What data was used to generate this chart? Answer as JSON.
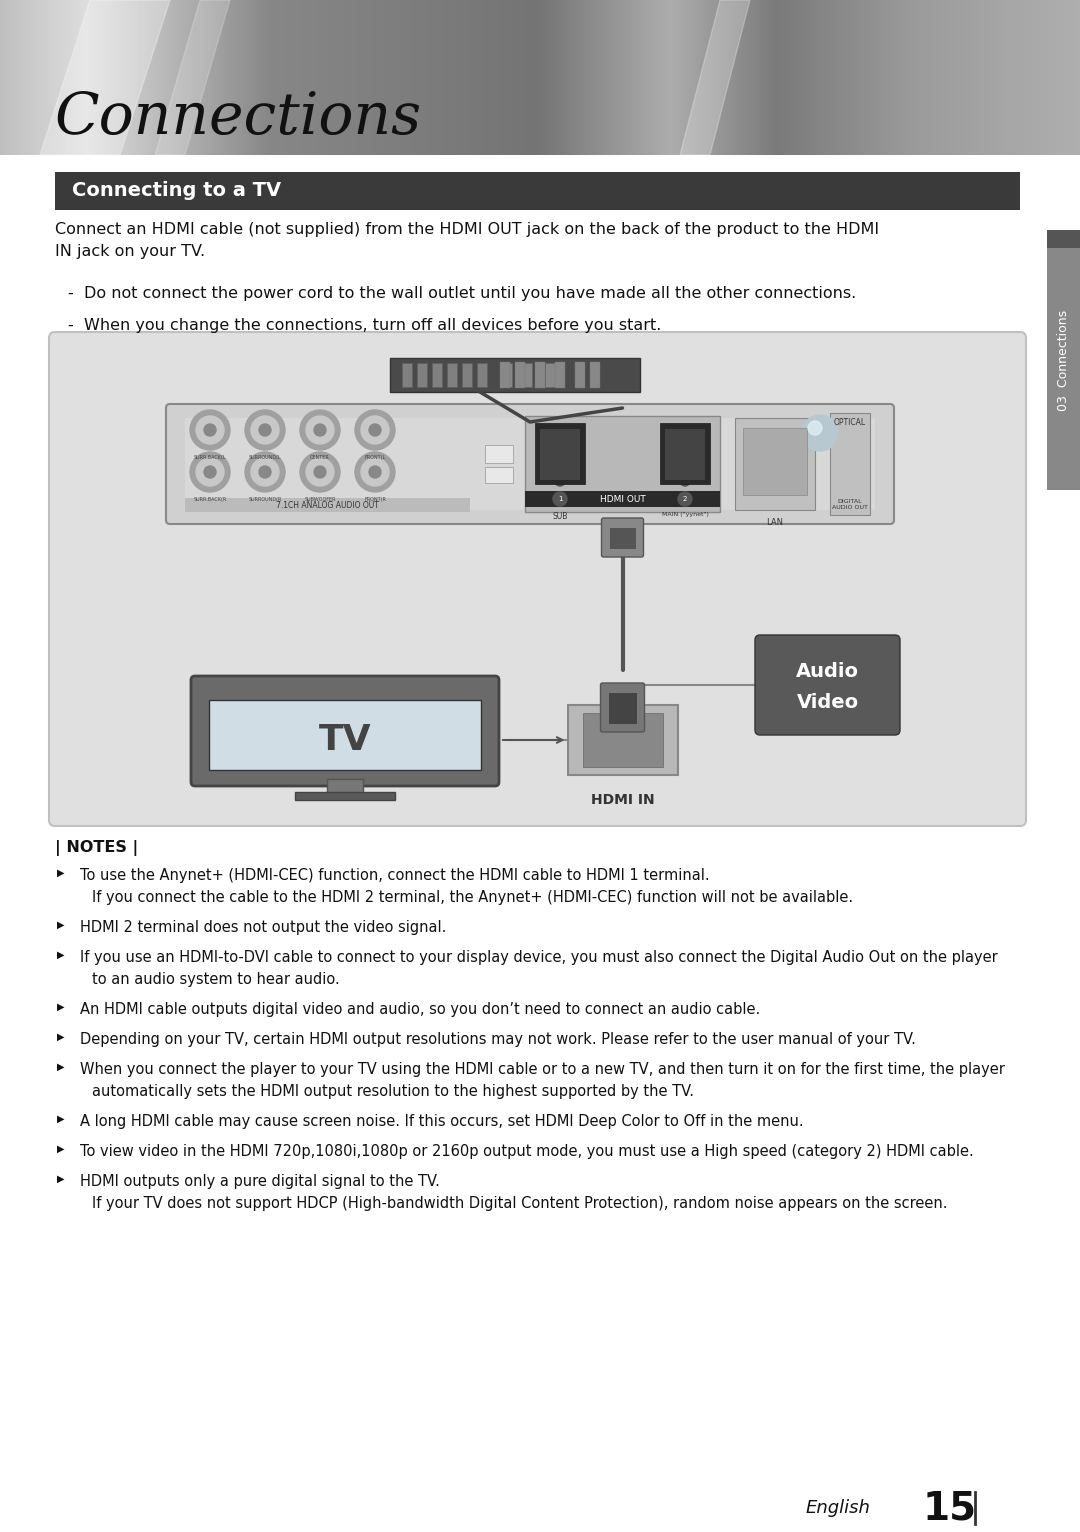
{
  "page_bg": "#ffffff",
  "header_title": "Connections",
  "section_bar_color": "#3a3a3a",
  "section_title": "Connecting to a TV",
  "section_title_color": "#ffffff",
  "body_text_color": "#111111",
  "intro_text": "Connect an HDMI cable (not supplied) from the HDMI OUT jack on the back of the product to the HDMI\nIN jack on your TV.",
  "bullet_points": [
    "Do not connect the power cord to the wall outlet until you have made all the other connections.",
    "When you change the connections, turn off all devices before you start."
  ],
  "diagram_bg": "#e0e0e0",
  "audio_video_bg": "#595959",
  "audio_video_text_color": "#ffffff",
  "tv_label": "TV",
  "tv_label_color": "#444444",
  "hdmi_in_label": "HDMI IN",
  "side_tab_bg": "#888888",
  "side_tab_text": "03  Connections",
  "side_tab_color": "#ffffff",
  "notes_header": "| NOTES |",
  "notes_items": [
    "To use the Anynet+ (HDMI-CEC) function, connect the HDMI cable to HDMI 1 terminal.\nIf you connect the cable to the HDMI 2 terminal, the Anynet+ (HDMI-CEC) function will not be available.",
    "HDMI 2 terminal does not output the video signal.",
    "If you use an HDMI-to-DVI cable to connect to your display device, you must also connect the Digital Audio Out on the player\nto an audio system to hear audio.",
    "An HDMI cable outputs digital video and audio, so you don’t need to connect an audio cable.",
    "Depending on your TV, certain HDMI output resolutions may not work. Please refer to the user manual of your TV.",
    "When you connect the player to your TV using the HDMI cable or to a new TV, and then turn it on for the first time, the player\nautomatically sets the HDMI output resolution to the highest supported by the TV.",
    "A long HDMI cable may cause screen noise. If this occurs, set HDMI Deep Color to Off in the menu.",
    "To view video in the HDMI 720p,1080i,1080p or 2160p output mode, you must use a High speed (category 2) HDMI cable.",
    "HDMI outputs only a pure digital signal to the TV.\nIf your TV does not support HDCP (High-bandwidth Digital Content Protection), random noise appears on the screen."
  ],
  "footer_text": "English",
  "footer_page": "15",
  "footer_color": "#111111"
}
